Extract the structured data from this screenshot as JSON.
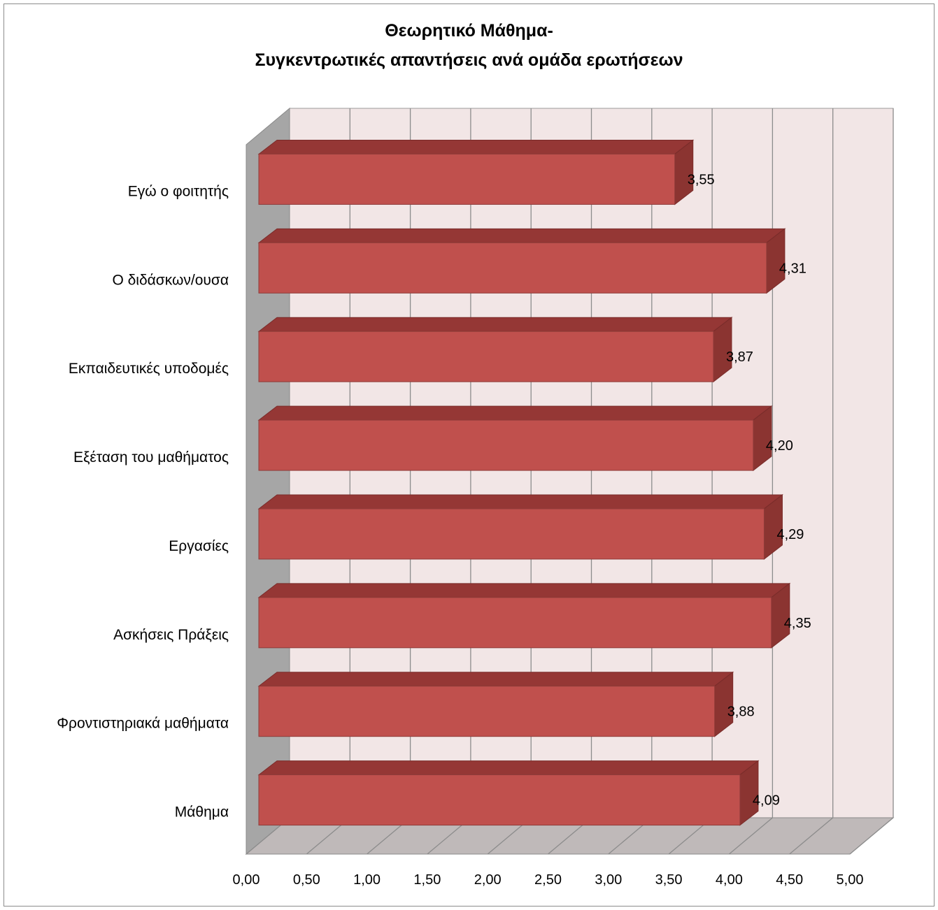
{
  "chart_data": {
    "type": "bar",
    "orientation": "horizontal",
    "title_line1": "Θεωρητικό Μάθημα-",
    "title_line2": "Συγκεντρωτικές απαντήσεις ανά ομάδα ερωτήσεων",
    "categories": [
      "Εγώ ο φοιτητής",
      "Ο διδάσκων/ουσα",
      "Εκπαιδευτικές υποδομές",
      "Εξέταση του μαθήματος",
      "Εργασίες",
      "Ασκήσεις Πράξεις",
      "Φροντιστηριακά μαθήματα",
      "Μάθημα"
    ],
    "values": [
      3.55,
      4.31,
      3.87,
      4.2,
      4.29,
      4.35,
      3.88,
      4.09
    ],
    "data_labels": [
      "3,55",
      "4,31",
      "3,87",
      "4,20",
      "4,29",
      "4,35",
      "3,88",
      "4,09"
    ],
    "x_ticks": [
      "0,00",
      "0,50",
      "1,00",
      "1,50",
      "2,00",
      "2,50",
      "3,00",
      "3,50",
      "4,00",
      "4,50",
      "5,00"
    ],
    "xlim": [
      0,
      5
    ],
    "grid": true,
    "legend": "none",
    "style": "3d",
    "colors": {
      "bar_front": "#c0504d",
      "bar_top": "#953735",
      "bar_side": "#8b3431",
      "wall": "#f2e6e6",
      "side_wall": "#a6a6a6",
      "floor": "#bfb9b9"
    }
  }
}
